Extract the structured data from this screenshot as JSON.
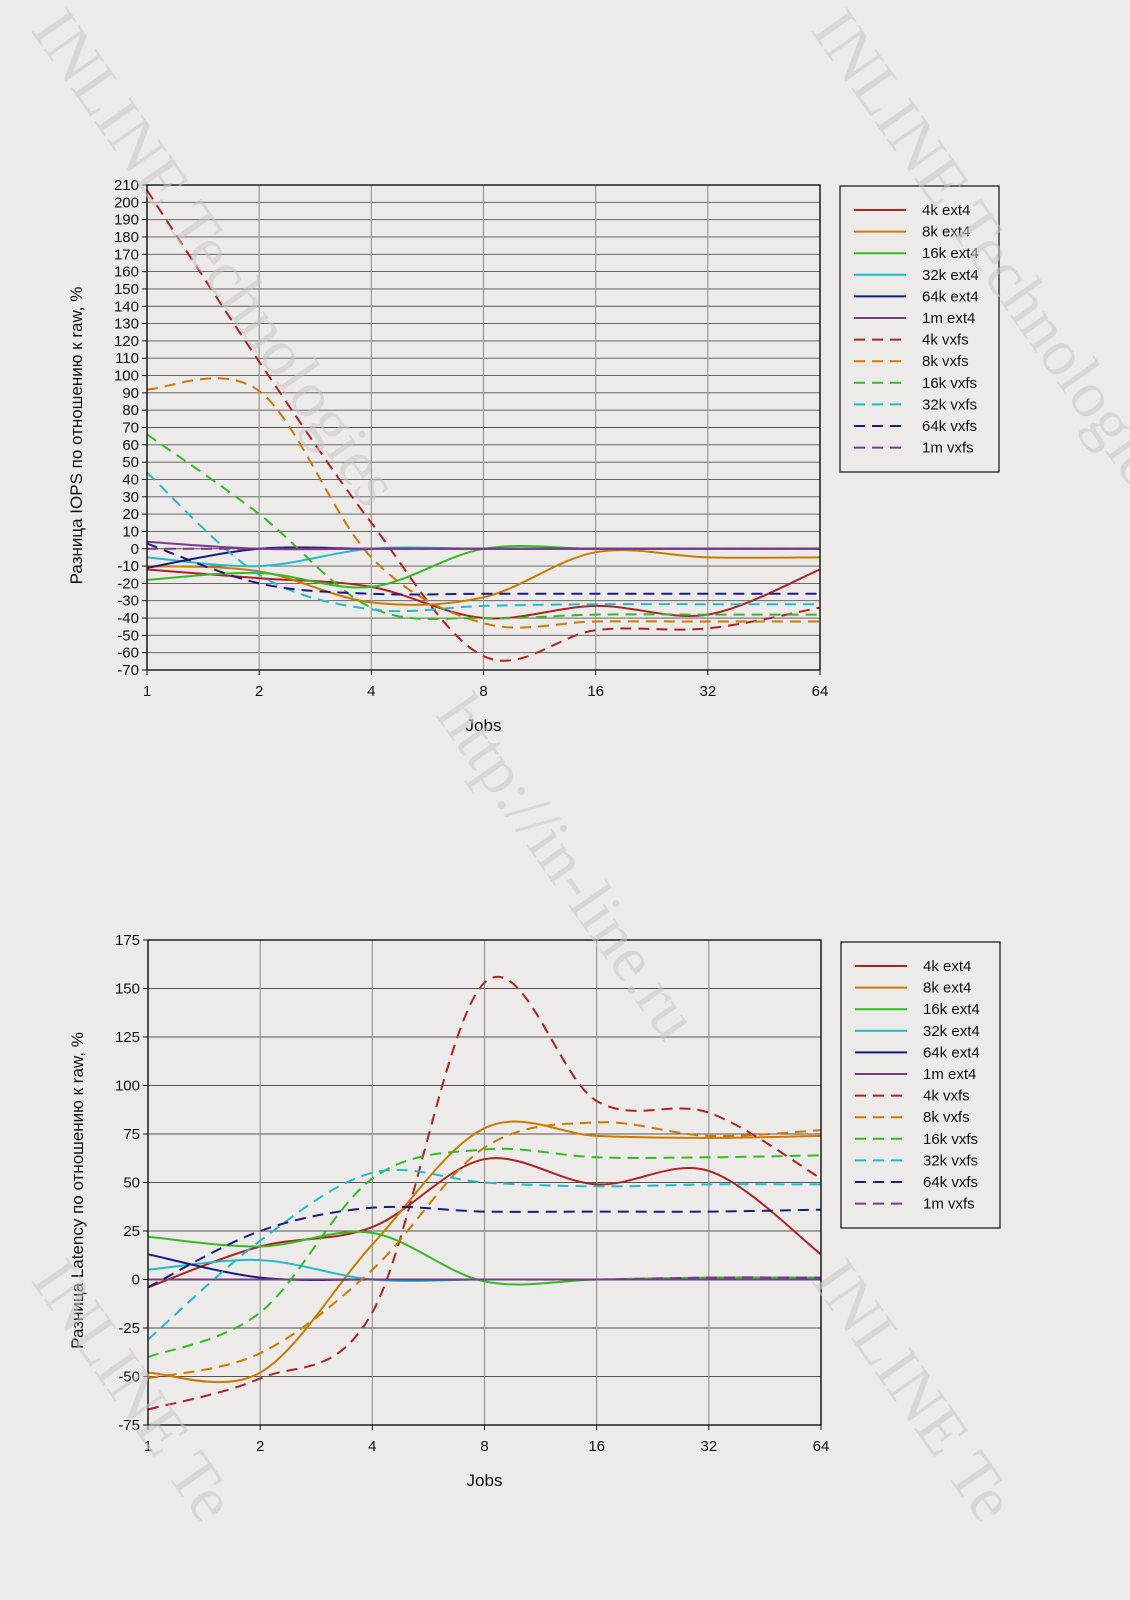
{
  "watermarks": [
    "INLINE Technologies",
    "INLINE Technologies",
    "http://in-line.ru",
    "INLINE Te",
    "INLINE Te"
  ],
  "chart_data": [
    {
      "type": "line",
      "title": "",
      "xlabel": "Jobs",
      "ylabel": "Разница IOPS по отношению к raw, %",
      "x": [
        1,
        2,
        4,
        8,
        16,
        32,
        64
      ],
      "x_ticklabels": [
        "1",
        "2",
        "4",
        "8",
        "16",
        "32",
        "64"
      ],
      "xscale": "log2",
      "ylim": [
        -70,
        210
      ],
      "yticks": [
        -70,
        -60,
        -50,
        -40,
        -30,
        -20,
        -10,
        0,
        10,
        20,
        30,
        40,
        50,
        60,
        70,
        80,
        90,
        100,
        110,
        120,
        130,
        140,
        150,
        160,
        170,
        180,
        190,
        200,
        210
      ],
      "grid": true,
      "legend_position": "right",
      "series": [
        {
          "name": "4k ext4",
          "color": "#b22222",
          "dash": false,
          "values": [
            -12,
            -17,
            -22,
            -40,
            -33,
            -38,
            -12
          ]
        },
        {
          "name": "8k ext4",
          "color": "#cc7a00",
          "dash": false,
          "values": [
            -10,
            -13,
            -31,
            -28,
            -2,
            -5,
            -5
          ]
        },
        {
          "name": "16k ext4",
          "color": "#33bb22",
          "dash": false,
          "values": [
            -18,
            -14,
            -22,
            0,
            0,
            0,
            0
          ]
        },
        {
          "name": "32k ext4",
          "color": "#22bbcc",
          "dash": false,
          "values": [
            -5,
            -10,
            0,
            0,
            0,
            0,
            0
          ]
        },
        {
          "name": "64k ext4",
          "color": "#1a1a80",
          "dash": false,
          "values": [
            -11,
            0,
            0,
            0,
            0,
            0,
            0
          ]
        },
        {
          "name": "1m ext4",
          "color": "#7a3a8a",
          "dash": false,
          "values": [
            4,
            0,
            0,
            0,
            0,
            0,
            0
          ]
        },
        {
          "name": "4k vxfs",
          "color": "#b22222",
          "dash": true,
          "values": [
            207,
            108,
            15,
            -62,
            -47,
            -46,
            -34
          ]
        },
        {
          "name": "8k vxfs",
          "color": "#cc7a00",
          "dash": true,
          "values": [
            92,
            91,
            -5,
            -43,
            -42,
            -42,
            -42
          ]
        },
        {
          "name": "16k vxfs",
          "color": "#33bb22",
          "dash": true,
          "values": [
            66,
            20,
            -34,
            -40,
            -38,
            -38,
            -38
          ]
        },
        {
          "name": "32k vxfs",
          "color": "#22bbcc",
          "dash": true,
          "values": [
            44,
            -15,
            -35,
            -33,
            -32,
            -32,
            -32
          ]
        },
        {
          "name": "64k vxfs",
          "color": "#1a1a80",
          "dash": true,
          "values": [
            3,
            -20,
            -26,
            -26,
            -26,
            -26,
            -26
          ]
        },
        {
          "name": "1m vxfs",
          "color": "#7a3a8a",
          "dash": true,
          "values": [
            0,
            0,
            0,
            0,
            0,
            0,
            0
          ]
        }
      ]
    },
    {
      "type": "line",
      "title": "",
      "xlabel": "Jobs",
      "ylabel": "Разница Latency по отношению к raw, %",
      "x": [
        1,
        2,
        4,
        8,
        16,
        32,
        64
      ],
      "x_ticklabels": [
        "1",
        "2",
        "4",
        "8",
        "16",
        "32",
        "64"
      ],
      "xscale": "log2",
      "ylim": [
        -75,
        175
      ],
      "yticks": [
        -75,
        -50,
        -25,
        0,
        25,
        50,
        75,
        100,
        125,
        150,
        175
      ],
      "grid": true,
      "legend_position": "right",
      "series": [
        {
          "name": "4k ext4",
          "color": "#b22222",
          "dash": false,
          "values": [
            -4,
            17,
            27,
            62,
            49,
            56,
            13
          ]
        },
        {
          "name": "8k ext4",
          "color": "#cc7a00",
          "dash": false,
          "values": [
            -48,
            -48,
            18,
            78,
            74,
            73,
            74
          ]
        },
        {
          "name": "16k ext4",
          "color": "#33bb22",
          "dash": false,
          "values": [
            22,
            17,
            24,
            -1,
            0,
            1,
            1
          ]
        },
        {
          "name": "32k ext4",
          "color": "#22bbcc",
          "dash": false,
          "values": [
            5,
            10,
            0,
            0,
            0,
            0,
            0
          ]
        },
        {
          "name": "64k ext4",
          "color": "#1a1a80",
          "dash": false,
          "values": [
            13,
            1,
            0,
            0,
            0,
            0,
            0
          ]
        },
        {
          "name": "1m ext4",
          "color": "#7a3a8a",
          "dash": false,
          "values": [
            0,
            0,
            0,
            0,
            0,
            0,
            0
          ]
        },
        {
          "name": "4k vxfs",
          "color": "#b22222",
          "dash": true,
          "values": [
            -67,
            -51,
            -17,
            153,
            92,
            86,
            52
          ]
        },
        {
          "name": "8k vxfs",
          "color": "#cc7a00",
          "dash": true,
          "values": [
            -51,
            -38,
            5,
            68,
            81,
            74,
            77
          ]
        },
        {
          "name": "16k vxfs",
          "color": "#33bb22",
          "dash": true,
          "values": [
            -40,
            -17,
            52,
            67,
            63,
            63,
            64
          ]
        },
        {
          "name": "32k vxfs",
          "color": "#22bbcc",
          "dash": true,
          "values": [
            -31,
            20,
            55,
            50,
            48,
            49,
            49
          ]
        },
        {
          "name": "64k vxfs",
          "color": "#1a1a80",
          "dash": true,
          "values": [
            -4,
            25,
            37,
            35,
            35,
            35,
            36
          ]
        },
        {
          "name": "1m vxfs",
          "color": "#7a3a8a",
          "dash": true,
          "values": [
            0,
            0,
            0,
            0,
            0,
            1,
            1
          ]
        }
      ]
    }
  ]
}
